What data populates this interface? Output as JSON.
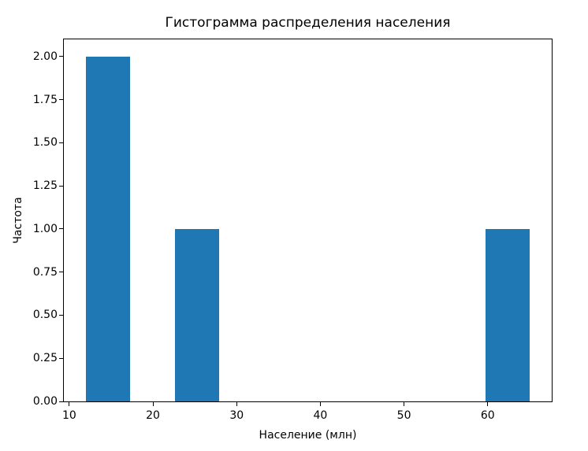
{
  "window": {
    "background": "#ffffff"
  },
  "chart_data": {
    "type": "bar",
    "subtype": "histogram",
    "title": "Гистограмма распределения населения",
    "xlabel": "Население (млн)",
    "ylabel": "Частота",
    "bar_color": "#1f77b4",
    "axis_color": "#000000",
    "background_color": "#ffffff",
    "grid": false,
    "legend": null,
    "xlim": [
      9.35,
      67.65
    ],
    "ylim": [
      0,
      2.1
    ],
    "bin_edges": [
      12.0,
      17.3,
      22.6,
      27.9,
      33.2,
      38.5,
      43.8,
      49.1,
      54.4,
      59.7,
      65.0
    ],
    "counts": [
      2,
      0,
      1,
      0,
      0,
      0,
      0,
      0,
      0,
      1
    ],
    "bars": [
      {
        "range": [
          12.0,
          17.3
        ],
        "frequency": 2
      },
      {
        "range": [
          22.6,
          27.9
        ],
        "frequency": 1
      },
      {
        "range": [
          59.7,
          65.0
        ],
        "frequency": 1
      }
    ],
    "xticks": [
      {
        "value": 10,
        "label": "10"
      },
      {
        "value": 20,
        "label": "20"
      },
      {
        "value": 30,
        "label": "30"
      },
      {
        "value": 40,
        "label": "40"
      },
      {
        "value": 50,
        "label": "50"
      },
      {
        "value": 60,
        "label": "60"
      }
    ],
    "yticks": [
      {
        "value": 0.0,
        "label": "0.00"
      },
      {
        "value": 0.25,
        "label": "0.25"
      },
      {
        "value": 0.5,
        "label": "0.50"
      },
      {
        "value": 0.75,
        "label": "0.75"
      },
      {
        "value": 1.0,
        "label": "1.00"
      },
      {
        "value": 1.25,
        "label": "1.25"
      },
      {
        "value": 1.5,
        "label": "1.50"
      },
      {
        "value": 1.75,
        "label": "1.75"
      },
      {
        "value": 2.0,
        "label": "2.00"
      }
    ]
  }
}
